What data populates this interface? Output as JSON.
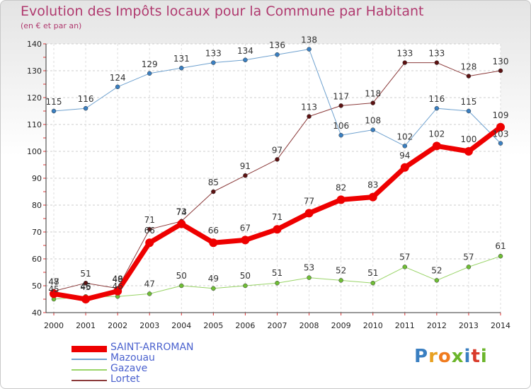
{
  "title": "Evolution des Impôts locaux pour la Commune par Habitant",
  "subtitle": "(en € et par an)",
  "brand": {
    "letters": [
      "P",
      "r",
      "o",
      "x",
      "i",
      "t",
      "i"
    ],
    "colors": [
      "#3a7fc1",
      "#e8a020",
      "#f07b1e",
      "#6bb52a",
      "#3a7fc1",
      "#d93b2b",
      "#6bb52a"
    ]
  },
  "chart_data": {
    "type": "line",
    "title": "Evolution des Impôts locaux pour la Commune par Habitant",
    "subtitle": "(en € et par an)",
    "xlabel": "",
    "ylabel": "",
    "x": [
      2000,
      2001,
      2002,
      2003,
      2004,
      2005,
      2006,
      2007,
      2008,
      2009,
      2010,
      2011,
      2012,
      2013,
      2014
    ],
    "ylim": [
      40,
      140
    ],
    "yticks": [
      40,
      50,
      60,
      70,
      80,
      90,
      100,
      110,
      120,
      130,
      140
    ],
    "grid": "horizontal-dashed",
    "legend_position": "bottom-left",
    "series": [
      {
        "name": "Gazave",
        "color": "#99d467",
        "marker": "#6fbe35",
        "width": 1,
        "values": [
          45,
          46,
          46,
          47,
          50,
          49,
          50,
          51,
          53,
          52,
          51,
          57,
          52,
          57,
          61
        ]
      },
      {
        "name": "Lortet",
        "color": "#8b3a3a",
        "marker": "#5c1212",
        "width": 1,
        "values": [
          48,
          51,
          49,
          71,
          74,
          85,
          91,
          97,
          113,
          117,
          118,
          133,
          133,
          128,
          130
        ]
      },
      {
        "name": "Mazouau",
        "color": "#6ea1cf",
        "marker": "#3a7fc1",
        "width": 1,
        "values": [
          115,
          116,
          124,
          129,
          131,
          133,
          134,
          136,
          138,
          106,
          108,
          102,
          116,
          115,
          103
        ]
      },
      {
        "name": "SAINT-ARROMAN",
        "color": "#ee0000",
        "marker": "#ee0000",
        "width": 7,
        "values": [
          47,
          45,
          48,
          66,
          73,
          66,
          67,
          71,
          77,
          82,
          83,
          94,
          102,
          100,
          109
        ]
      }
    ],
    "legend_order": [
      "SAINT-ARROMAN",
      "Mazouau",
      "Gazave",
      "Lortet"
    ]
  }
}
